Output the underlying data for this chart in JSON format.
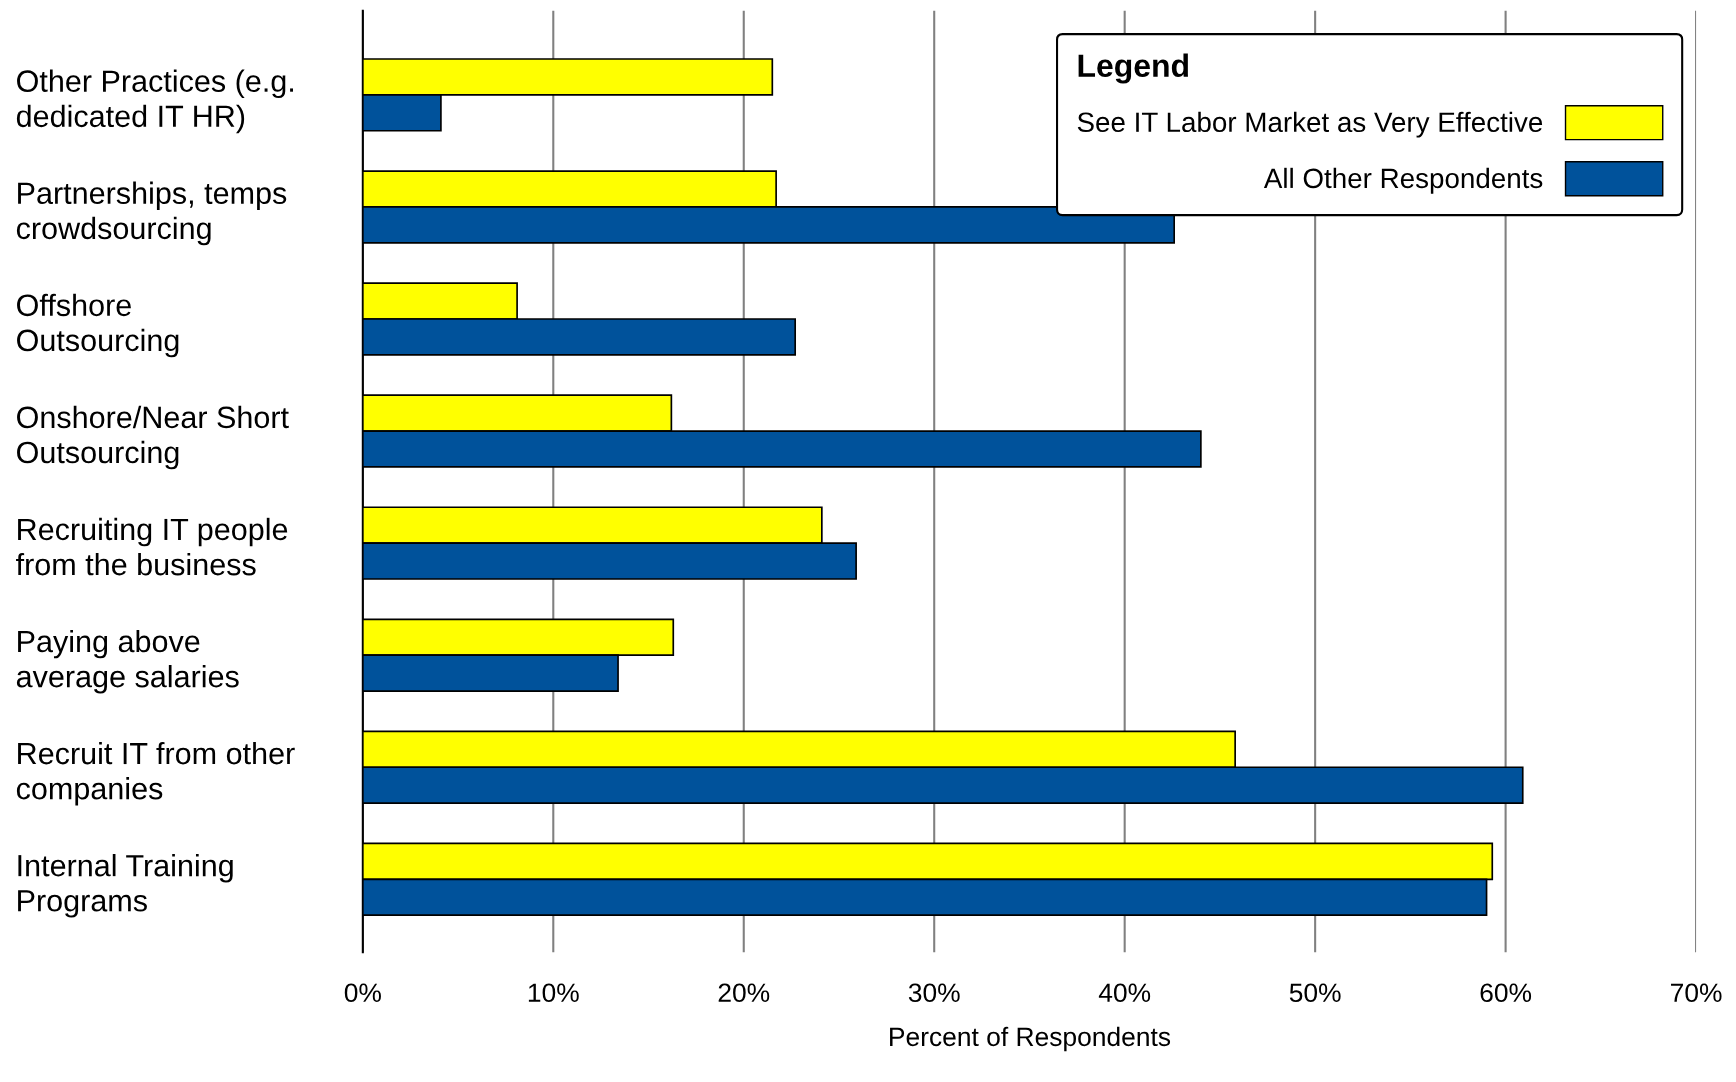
{
  "chart_data": {
    "type": "bar",
    "orientation": "horizontal",
    "xlabel": "Percent of Respondents",
    "categories": [
      "Other Practices (e.g.\ndedicated IT HR)",
      "Partnerships, temps\ncrowdsourcing",
      "Offshore\nOutsourcing",
      "Onshore/Near Short\nOutsourcing",
      "Recruiting IT people\nfrom the business",
      "Paying above\naverage salaries",
      "Recruit IT from other\ncompanies",
      "Internal Training\nPrograms"
    ],
    "series": [
      {
        "name": "See IT Labor Market as Very Effective",
        "color": "#ffff00",
        "values": [
          21.5,
          21.7,
          8.1,
          16.2,
          24.1,
          16.3,
          45.8,
          59.3
        ]
      },
      {
        "name": "All Other Respondents",
        "color": "#00529b",
        "values": [
          4.1,
          42.6,
          22.7,
          44.0,
          25.9,
          13.4,
          60.9,
          59.0
        ]
      }
    ],
    "xlim": [
      0,
      70
    ],
    "xticks": [
      {
        "value": 0,
        "label": "0%"
      },
      {
        "value": 10,
        "label": "10%"
      },
      {
        "value": 20,
        "label": "20%"
      },
      {
        "value": 30,
        "label": "30%"
      },
      {
        "value": 40,
        "label": "40%"
      },
      {
        "value": 50,
        "label": "50%"
      },
      {
        "value": 60,
        "label": "60%"
      },
      {
        "value": 70,
        "label": "70%"
      }
    ],
    "grid": "x",
    "legend": "top right",
    "legend_title": "Legend"
  }
}
